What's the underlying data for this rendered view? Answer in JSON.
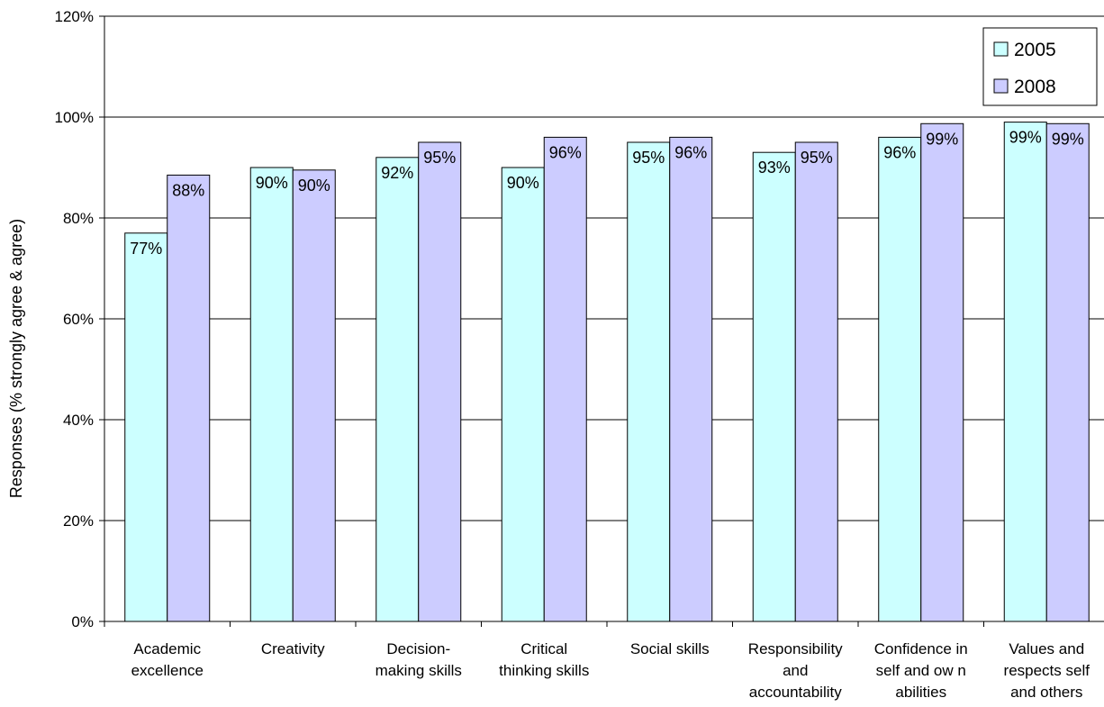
{
  "chart_data": {
    "type": "bar",
    "title": "",
    "xlabel": "",
    "ylabel": "Responses (% strongly agree & agree)",
    "ylim": [
      0,
      120
    ],
    "y_ticks": [
      "0%",
      "20%",
      "40%",
      "60%",
      "80%",
      "100%",
      "120%"
    ],
    "y_tick_values": [
      0,
      20,
      40,
      60,
      80,
      100,
      120
    ],
    "grid": "horizontal",
    "legend_position": "top-right",
    "categories": [
      [
        "Academic",
        "excellence"
      ],
      [
        "Creativity"
      ],
      [
        "Decision-",
        "making skills"
      ],
      [
        "Critical",
        "thinking skills"
      ],
      [
        "Social skills"
      ],
      [
        "Responsibility",
        "and",
        "accountability"
      ],
      [
        "Confidence in",
        "self and ow n",
        "abilities"
      ],
      [
        "Values and",
        "respects self",
        "and others"
      ]
    ],
    "series": [
      {
        "name": "2005",
        "color": "#ccffff",
        "values": [
          77,
          90,
          92,
          90,
          95,
          93,
          96,
          99
        ],
        "labels": [
          "77%",
          "90%",
          "92%",
          "90%",
          "95%",
          "93%",
          "96%",
          "99%"
        ]
      },
      {
        "name": "2008",
        "color": "#ccccff",
        "values": [
          88.5,
          89.5,
          95,
          96,
          96,
          95,
          98.7,
          98.7
        ],
        "labels": [
          "88%",
          "90%",
          "95%",
          "96%",
          "96%",
          "95%",
          "99%",
          "99%"
        ]
      }
    ]
  }
}
